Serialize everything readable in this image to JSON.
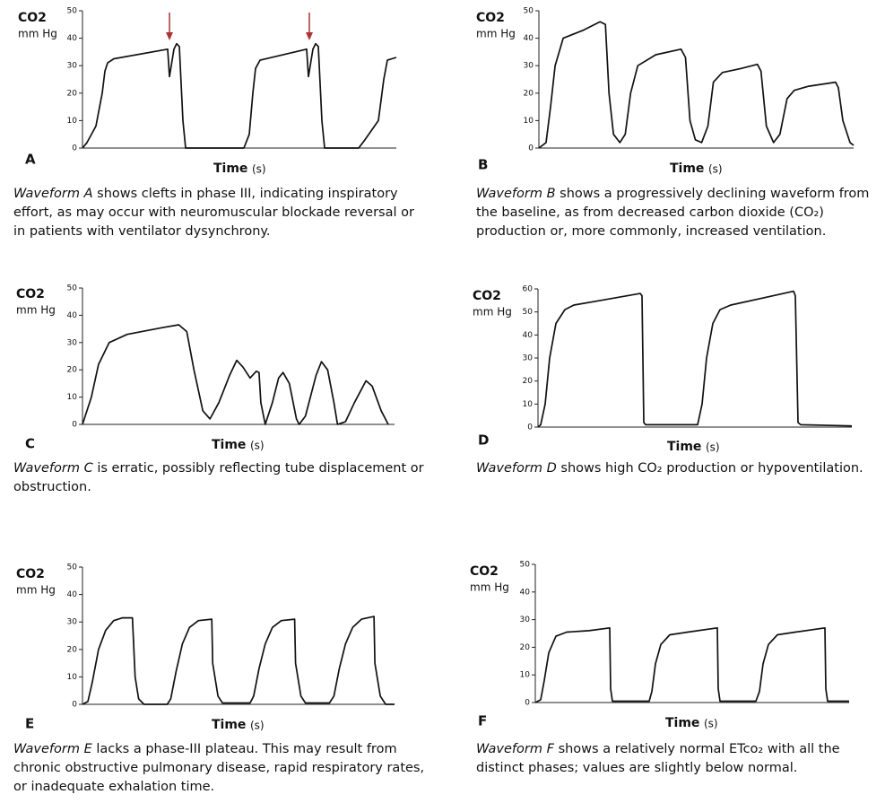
{
  "chart_data": [
    {
      "type": "line",
      "panel": "A",
      "ylabel": "CO2",
      "yunit": "mm Hg",
      "xlabel": "Time",
      "xunit": "(s)",
      "color": "#111111",
      "xlim": [
        0,
        35
      ],
      "ylim": [
        0,
        50
      ],
      "yticks": [
        0,
        10,
        20,
        30,
        40,
        50
      ],
      "x": [
        0,
        0.5,
        1.5,
        2.2,
        2.5,
        2.8,
        3.5,
        9.5,
        9.7,
        10.2,
        10.5,
        10.8,
        11.2,
        11.5,
        18,
        18.6,
        19,
        19.3,
        19.8,
        25,
        25.2,
        25.7,
        26,
        26.3,
        26.7,
        27,
        30.8,
        31.5,
        33,
        33.6,
        34,
        35
      ],
      "values": [
        0,
        2,
        8,
        20,
        28,
        31,
        32.5,
        36,
        26,
        36,
        38,
        37,
        10,
        0,
        0,
        5,
        20,
        29,
        32,
        36,
        26,
        36,
        38,
        37,
        10,
        0,
        0,
        3,
        10,
        25,
        32,
        33
      ],
      "caption_lead": "Waveform A",
      "caption": "shows clefts in phase III, indicating inspiratory effort, as may occur with neuromuscular blockade reversal or in patients with ventilator dysynchrony."
    },
    {
      "type": "line",
      "panel": "B",
      "ylabel": "CO2",
      "yunit": "mm Hg",
      "xlabel": "Time",
      "xunit": "(s)",
      "color": "#111111",
      "xlim": [
        0,
        35
      ],
      "ylim": [
        0,
        50
      ],
      "yticks": [
        0,
        10,
        20,
        30,
        40,
        50
      ],
      "x": [
        0,
        0.8,
        1.3,
        1.8,
        2.7,
        5,
        6.8,
        7.4,
        7.8,
        8.3,
        9,
        9.6,
        10.2,
        11,
        13,
        15.8,
        16.3,
        16.8,
        17.4,
        18.1,
        18.8,
        19.4,
        20.4,
        22.5,
        24.3,
        24.7,
        25.3,
        26.1,
        26.8,
        27.6,
        28.4,
        30,
        33,
        33.3,
        33.8,
        34.6,
        35
      ],
      "values": [
        0,
        2,
        15,
        30,
        40,
        43,
        46,
        45,
        20,
        5,
        2,
        5,
        20,
        30,
        34,
        36,
        33,
        10,
        3,
        2,
        8,
        24,
        27.5,
        29,
        30.5,
        28,
        8,
        2,
        5,
        18,
        21,
        22.5,
        24,
        22,
        10,
        2,
        1
      ],
      "caption_lead": "Waveform B",
      "caption": "shows a progressively declining waveform from the baseline, as from decreased carbon dioxide (CO₂) production or, more commonly, increased ventilation."
    },
    {
      "type": "line",
      "panel": "C",
      "ylabel": "CO2",
      "yunit": "mm Hg",
      "xlabel": "Time",
      "xunit": "(s)",
      "color": "#111111",
      "xlim": [
        0,
        35
      ],
      "ylim": [
        0,
        50
      ],
      "yticks": [
        0,
        10,
        20,
        30,
        40,
        50
      ],
      "x": [
        0,
        1,
        1.8,
        3,
        5,
        9,
        10.8,
        11.7,
        12.5,
        13.5,
        14.3,
        15.3,
        16.5,
        17.3,
        18,
        18.8,
        19.5,
        19.8,
        20,
        20.5,
        21.3,
        22,
        22.5,
        23.2,
        24,
        24.3,
        25,
        26.2,
        26.8,
        27.5,
        28.2,
        28.6,
        29.5,
        30.5,
        31.8,
        32.5,
        33.5,
        34.3
      ],
      "values": [
        0,
        10,
        22,
        30,
        33,
        35.5,
        36.5,
        34,
        20,
        5,
        2,
        8,
        18,
        23.5,
        21,
        17,
        19.5,
        19,
        8,
        0,
        8,
        17,
        19,
        15,
        2,
        0,
        3,
        18,
        23,
        20,
        8,
        0,
        1,
        8,
        16,
        14,
        5,
        0
      ],
      "caption_lead": "Waveform C",
      "caption": "is erratic, possibly reflecting tube displacement or obstruction."
    },
    {
      "type": "line",
      "panel": "D",
      "ylabel": "CO2",
      "yunit": "mm Hg",
      "xlabel": "Time",
      "xunit": "(s)",
      "color": "#111111",
      "xlim": [
        0,
        35
      ],
      "ylim": [
        0,
        60
      ],
      "yticks": [
        0,
        10,
        20,
        30,
        40,
        50,
        60
      ],
      "x": [
        0,
        0.3,
        0.8,
        1.3,
        2,
        3,
        4,
        7,
        11.4,
        11.6,
        11.8,
        12,
        17.8,
        18.3,
        18.8,
        19.5,
        20.3,
        21.5,
        25,
        28.5,
        28.7,
        29,
        29.3,
        35
      ],
      "values": [
        0,
        1,
        10,
        30,
        45,
        51,
        53,
        55,
        58,
        57,
        2,
        1,
        1,
        10,
        30,
        45,
        51,
        53,
        56,
        59,
        57,
        2,
        1,
        0.5
      ],
      "caption_lead": "Waveform D",
      "caption": "shows high CO₂ production or hypoventilation."
    },
    {
      "type": "line",
      "panel": "E",
      "ylabel": "CO2",
      "yunit": "mm Hg",
      "xlabel": "Time",
      "xunit": "(s)",
      "color": "#111111",
      "xlim": [
        0,
        35
      ],
      "ylim": [
        0,
        50
      ],
      "yticks": [
        0,
        10,
        20,
        30,
        40,
        50
      ],
      "x": [
        0,
        0.6,
        1.1,
        1.8,
        2.6,
        3.5,
        4.5,
        5.6,
        5.9,
        6.3,
        6.9,
        9.5,
        9.9,
        10.5,
        11.2,
        12,
        13,
        14.5,
        14.6,
        15.2,
        15.7,
        18.8,
        19.2,
        19.8,
        20.5,
        21.3,
        22.3,
        23.8,
        23.9,
        24.5,
        25,
        27.7,
        28.2,
        28.8,
        29.5,
        30.3,
        31.3,
        32.7,
        32.8,
        33.4,
        34,
        35
      ],
      "values": [
        0,
        1,
        8,
        20,
        27,
        30.5,
        31.5,
        31.5,
        10,
        2,
        0,
        0,
        2,
        12,
        22,
        28,
        30.5,
        31,
        15,
        3,
        0.5,
        0.5,
        3,
        13,
        22,
        28,
        30.5,
        31,
        15,
        3,
        0.5,
        0.5,
        3,
        13,
        22,
        28,
        31,
        32,
        15,
        3,
        0,
        0
      ],
      "caption_lead": "Waveform E",
      "caption": "lacks a phase-III plateau. This may result from chronic obstructive pulmonary disease, rapid respiratory rates, or inadequate exhalation time."
    },
    {
      "type": "line",
      "panel": "F",
      "ylabel": "CO2",
      "yunit": "mm Hg",
      "xlabel": "Time",
      "xunit": "(s)",
      "color": "#111111",
      "xlim": [
        0,
        35
      ],
      "ylim": [
        0,
        50
      ],
      "yticks": [
        0,
        10,
        20,
        30,
        40,
        50
      ],
      "x": [
        0,
        0.6,
        1,
        1.5,
        2.3,
        3.5,
        6,
        8.3,
        8.4,
        8.6,
        12.7,
        13,
        13.4,
        14,
        15,
        17,
        20.3,
        20.4,
        20.6,
        24.6,
        25,
        25.4,
        26,
        27,
        29,
        32.3,
        32.4,
        32.6,
        35
      ],
      "values": [
        0,
        1,
        8,
        18,
        24,
        25.5,
        26,
        27,
        5,
        0.5,
        0.5,
        4,
        14,
        21,
        24.5,
        25.5,
        27,
        5,
        0.5,
        0.5,
        4,
        14,
        21,
        24.5,
        25.5,
        27,
        5,
        0.5,
        0.5
      ],
      "caption_lead": "Waveform F",
      "caption": "shows a relatively normal ETco₂ with all the distinct phases; values are slightly below normal."
    }
  ]
}
